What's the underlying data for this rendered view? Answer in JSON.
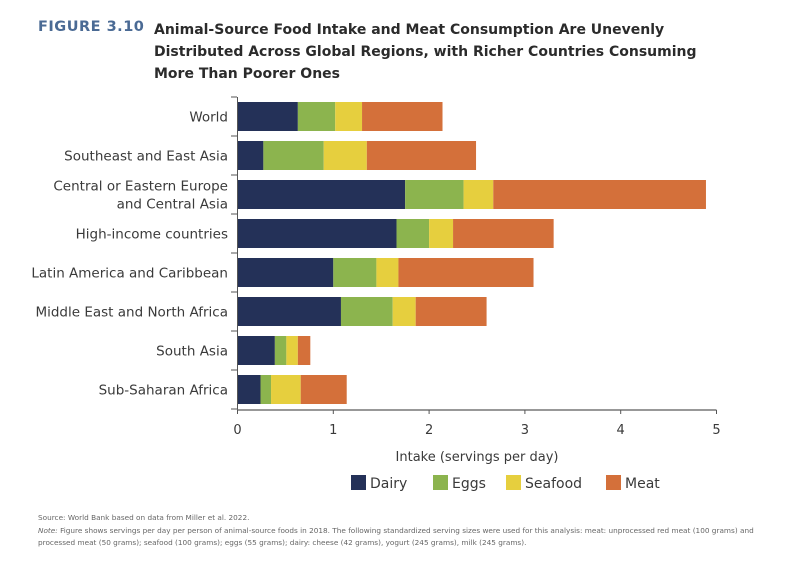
{
  "figure": {
    "label": "FIGURE 3.10",
    "title": "Animal-Source Food Intake and Meat Consumption Are Unevenly Distributed Across Global Regions, with Richer Countries Consuming More Than Poorer Ones"
  },
  "footer": {
    "source": "Source: World Bank based on data from Miller et al. 2022.",
    "note_prefix": "Note:",
    "note": "Figure shows servings per day per person of animal-source foods in 2018. The following standardized serving sizes were used for this analysis: meat: unprocessed red meat (100 grams) and processed meat (50 grams); seafood (100 grams); eggs (55 grams); dairy: cheese (42 grams), yogurt (245 grams), milk (245 grams)."
  },
  "chart_data": {
    "type": "bar",
    "orientation": "horizontal",
    "stacked": true,
    "title": "Animal-Source Food Intake and Meat Consumption Are Unevenly Distributed Across Global Regions, with Richer Countries Consuming More Than Poorer Ones",
    "xlabel": "Intake (servings per day)",
    "ylabel": "",
    "xlim": [
      0,
      5
    ],
    "xticks": [
      0,
      1,
      2,
      3,
      4,
      5
    ],
    "grid": false,
    "legend_position": "bottom",
    "categories": [
      "World",
      "Southeast and East Asia",
      "Central or Eastern Europe and Central Asia",
      "High-income countries",
      "Latin America and Caribbean",
      "Middle East and North Africa",
      "South Asia",
      "Sub-Saharan Africa"
    ],
    "category_lines": [
      [
        "World"
      ],
      [
        "Southeast and East Asia"
      ],
      [
        "Central or Eastern Europe",
        "and Central Asia"
      ],
      [
        "High-income countries"
      ],
      [
        "Latin America and Caribbean"
      ],
      [
        "Middle East and North Africa"
      ],
      [
        "South Asia"
      ],
      [
        "Sub-Saharan Africa"
      ]
    ],
    "series": [
      {
        "name": "Dairy",
        "color": "#243158",
        "values": [
          0.63,
          0.27,
          1.75,
          1.66,
          1.0,
          1.08,
          0.39,
          0.24
        ]
      },
      {
        "name": "Eggs",
        "color": "#8cb44e",
        "values": [
          0.39,
          0.63,
          0.61,
          0.34,
          0.45,
          0.54,
          0.12,
          0.11
        ]
      },
      {
        "name": "Seafood",
        "color": "#e6cf3e",
        "values": [
          0.28,
          0.45,
          0.31,
          0.25,
          0.23,
          0.24,
          0.12,
          0.31
        ]
      },
      {
        "name": "Meat",
        "color": "#d4703a",
        "values": [
          0.84,
          1.14,
          2.22,
          1.05,
          1.41,
          0.74,
          0.13,
          0.48
        ]
      }
    ]
  }
}
